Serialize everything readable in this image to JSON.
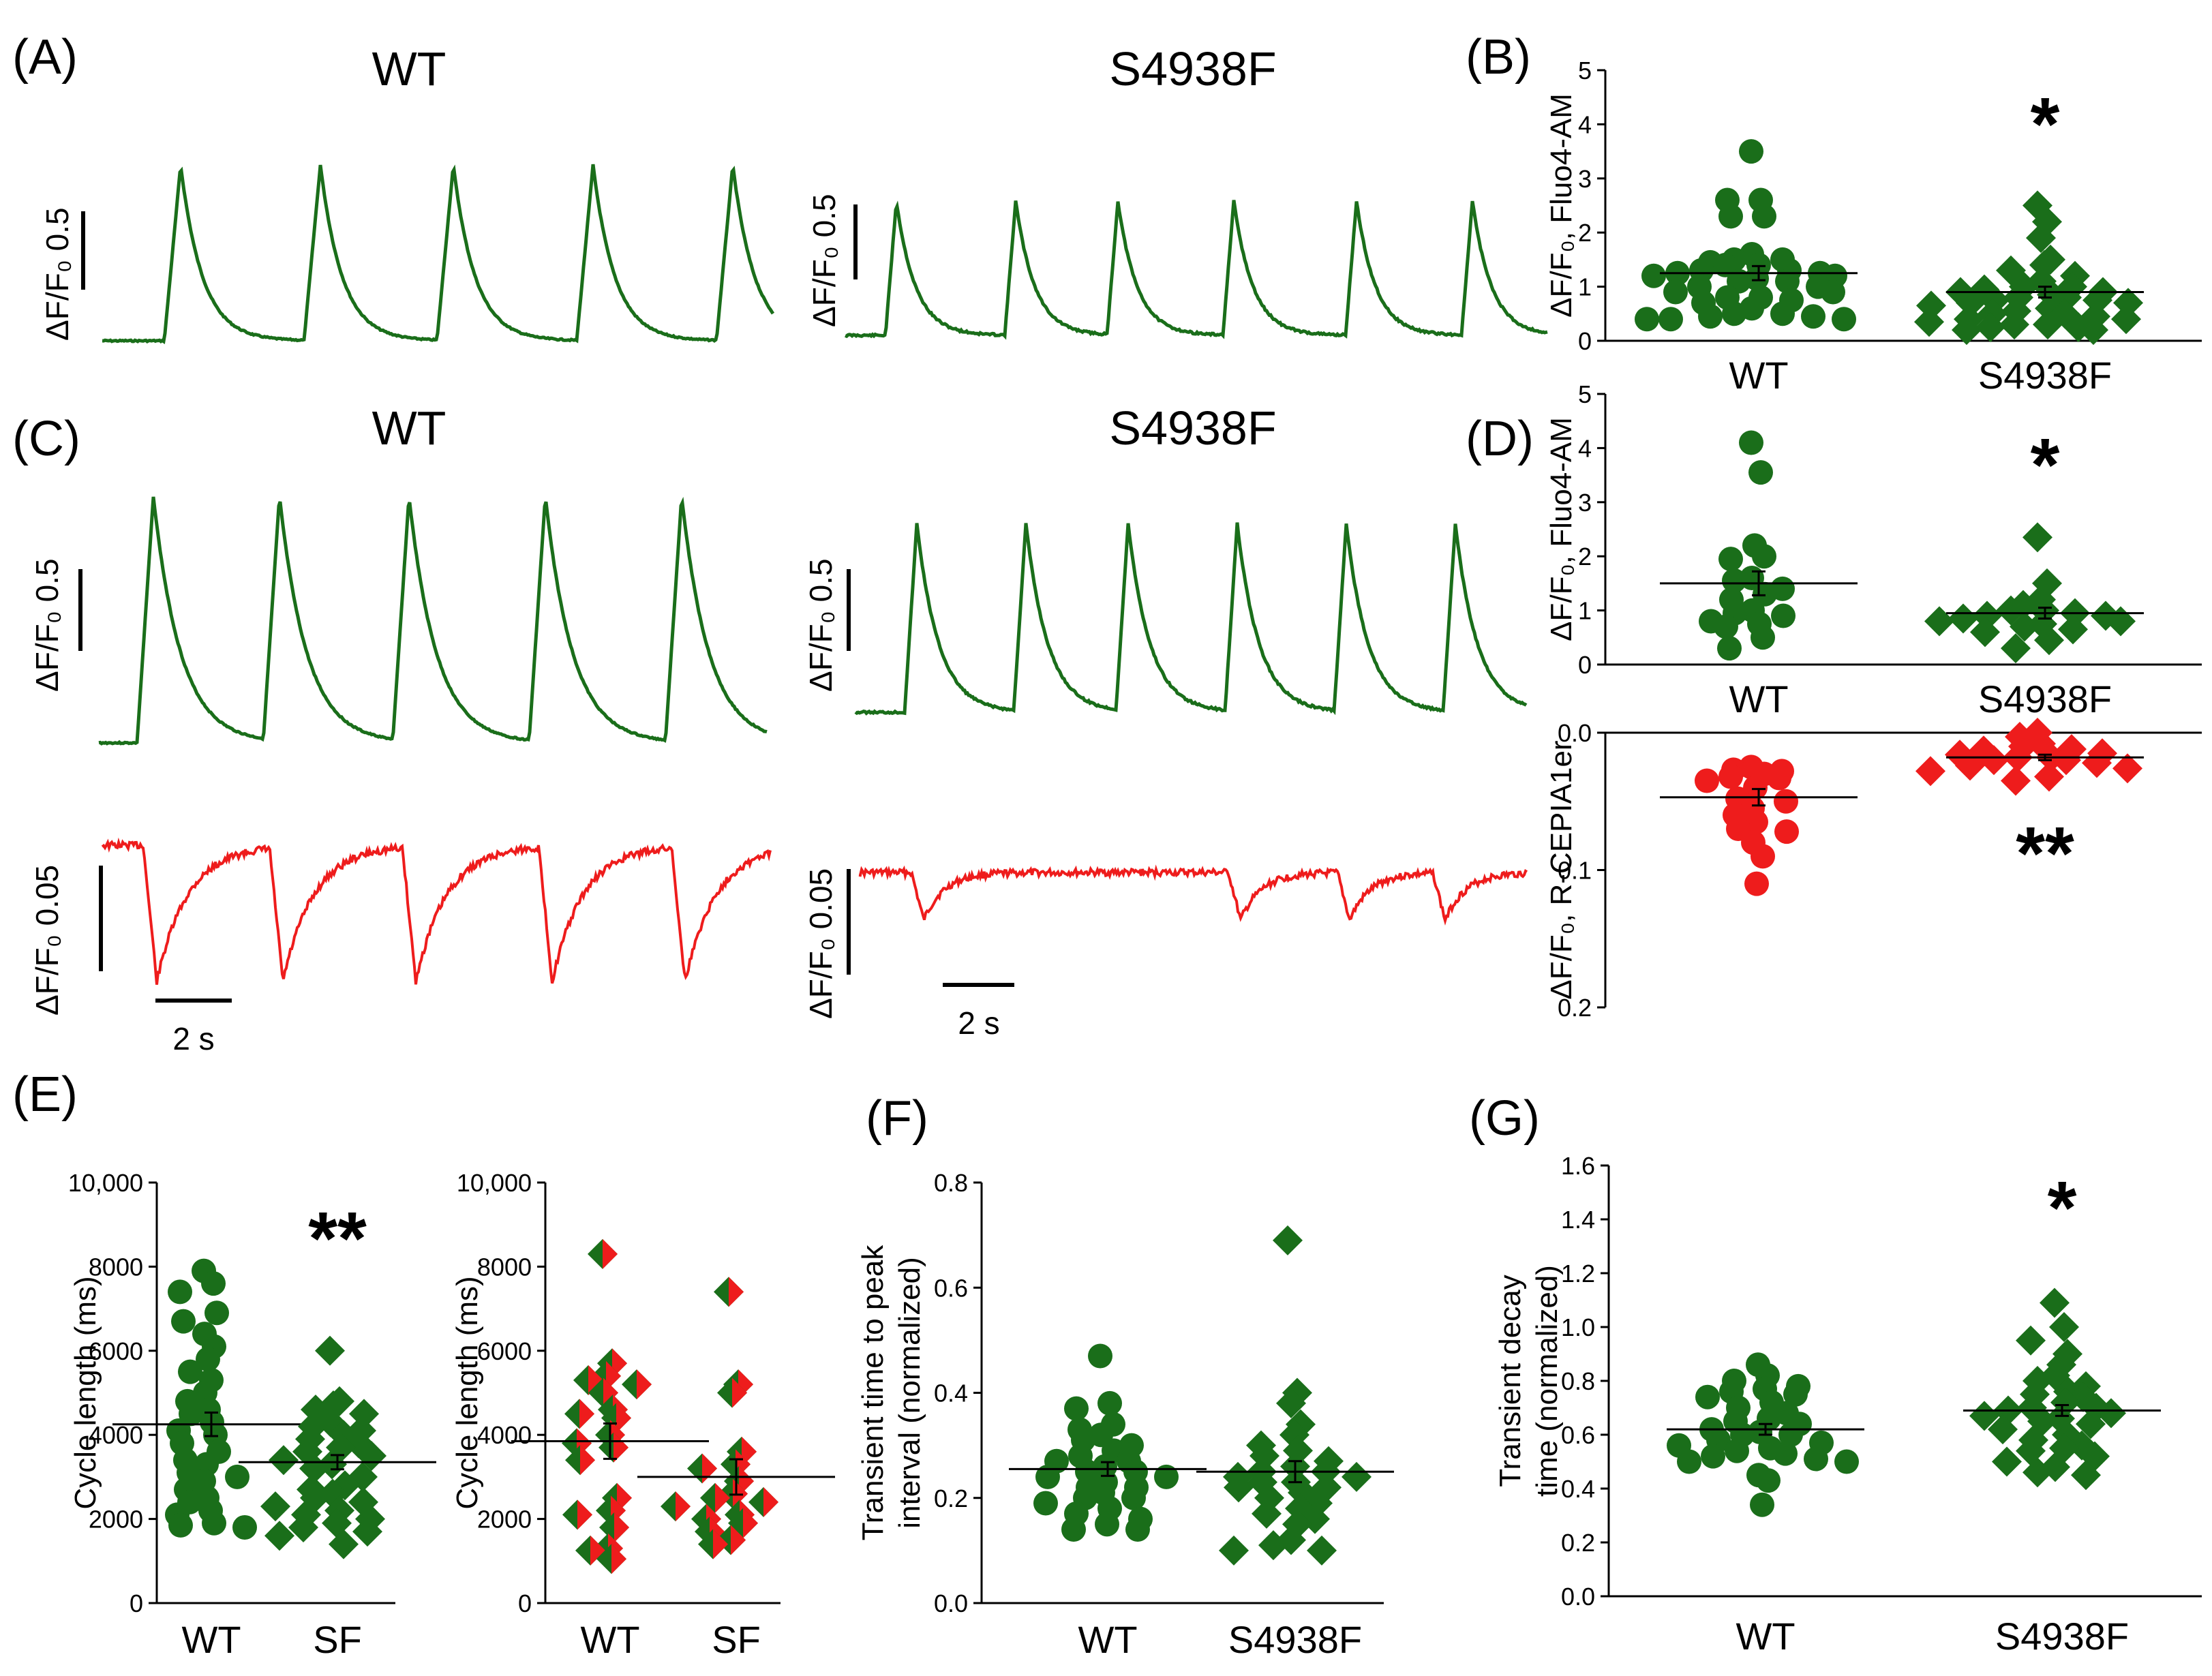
{
  "colors": {
    "green": "#1a6e1a",
    "red": "#ee1c1c",
    "black": "#000000"
  },
  "panels": {
    "A": {
      "label": "(A)",
      "title_wt": "WT",
      "title_mut": "S4938F",
      "scale_label": "ΔF/F₀ 0.5"
    },
    "B": {
      "label": "(B)"
    },
    "C": {
      "label": "(C)",
      "title_wt": "WT",
      "title_mut": "S4938F",
      "scale_label_green": "ΔF/F₀ 0.5",
      "scale_label_red": "ΔF/F₀ 0.05",
      "time_scale": "2 s"
    },
    "D": {
      "label": "(D)"
    },
    "E": {
      "label": "(E)"
    },
    "F": {
      "label": "(F)"
    },
    "G": {
      "label": "(G)"
    }
  },
  "chart_data": [
    {
      "id": "B",
      "type": "scatter",
      "title": "",
      "ylabel": "ΔF/F₀, Fluo4-AM",
      "categories": [
        "WT",
        "S4938F"
      ],
      "ylim": [
        0,
        5
      ],
      "yticks": [
        0,
        1,
        2,
        3,
        4,
        5
      ],
      "series": [
        {
          "name": "WT",
          "marker": "circle",
          "color": "#1a6e1a",
          "mean": 1.25,
          "sem": 0.13,
          "values": [
            3.5,
            2.6,
            2.6,
            2.3,
            2.3,
            1.6,
            1.5,
            1.5,
            1.45,
            1.4,
            1.4,
            1.3,
            1.3,
            1.25,
            1.25,
            1.2,
            1.2,
            1.15,
            1.1,
            1.1,
            1.0,
            1.0,
            0.9,
            0.9,
            0.8,
            0.8,
            0.75,
            0.7,
            0.6,
            0.5,
            0.5,
            0.45,
            0.45,
            0.4,
            0.4,
            0.4
          ]
        },
        {
          "name": "S4938F",
          "marker": "diamond",
          "color": "#1a6e1a",
          "mean": 0.9,
          "sem": 0.1,
          "values": [
            2.5,
            2.2,
            1.9,
            1.5,
            1.4,
            1.3,
            1.2,
            1.1,
            1.0,
            1.0,
            0.95,
            0.9,
            0.9,
            0.85,
            0.8,
            0.8,
            0.75,
            0.75,
            0.7,
            0.7,
            0.65,
            0.6,
            0.55,
            0.5,
            0.5,
            0.45,
            0.4,
            0.4,
            0.35,
            0.3,
            0.3,
            0.25,
            0.25,
            0.2,
            0.2
          ]
        }
      ],
      "significance": "*"
    },
    {
      "id": "D_top",
      "type": "scatter",
      "ylabel": "ΔF/F₀, Fluo4-AM",
      "categories": [
        "WT",
        "S4938F"
      ],
      "ylim": [
        0,
        5
      ],
      "yticks": [
        0,
        1,
        2,
        3,
        4,
        5
      ],
      "series": [
        {
          "name": "WT",
          "marker": "circle",
          "color": "#1a6e1a",
          "mean": 1.5,
          "sem": 0.22,
          "values": [
            4.1,
            3.55,
            2.2,
            2.0,
            1.95,
            1.6,
            1.55,
            1.4,
            1.3,
            1.2,
            1.0,
            0.95,
            0.9,
            0.8,
            0.75,
            0.7,
            0.5,
            0.3
          ]
        },
        {
          "name": "S4938F",
          "marker": "diamond",
          "color": "#1a6e1a",
          "mean": 0.95,
          "sem": 0.1,
          "values": [
            2.35,
            1.5,
            1.2,
            1.1,
            1.0,
            1.0,
            0.95,
            0.9,
            0.9,
            0.85,
            0.8,
            0.8,
            0.75,
            0.7,
            0.65,
            0.6,
            0.45,
            0.3
          ]
        }
      ],
      "significance": "*"
    },
    {
      "id": "D_bottom",
      "type": "scatter",
      "ylabel": "ΔF/F₀, R-CEPIA1er",
      "categories": [
        "WT",
        "S4938F"
      ],
      "ylim": [
        0,
        0.2
      ],
      "inverted": true,
      "yticks": [
        "0.0",
        "0.1",
        "0.2"
      ],
      "series": [
        {
          "name": "WT",
          "marker": "circle",
          "color": "#ee1c1c",
          "mean": 0.047,
          "sem": 0.006,
          "values": [
            0.025,
            0.027,
            0.028,
            0.03,
            0.032,
            0.033,
            0.035,
            0.04,
            0.048,
            0.05,
            0.055,
            0.06,
            0.065,
            0.07,
            0.072,
            0.08,
            0.09,
            0.11
          ]
        },
        {
          "name": "S4938F",
          "marker": "diamond",
          "color": "#ee1c1c",
          "mean": 0.018,
          "sem": 0.002,
          "values": [
            0.0,
            0.003,
            0.008,
            0.01,
            0.012,
            0.013,
            0.015,
            0.016,
            0.018,
            0.018,
            0.02,
            0.02,
            0.022,
            0.024,
            0.026,
            0.028,
            0.032,
            0.035
          ]
        }
      ],
      "significance": "**"
    },
    {
      "id": "E_left",
      "type": "scatter",
      "ylabel": "Cycle length (ms)",
      "categories": [
        "WT",
        "SF"
      ],
      "ylim": [
        0,
        10000
      ],
      "yticks": [
        "0",
        "2000",
        "4000",
        "6000",
        "8000",
        "10,000"
      ],
      "series": [
        {
          "name": "WT",
          "marker": "circle",
          "color": "#1a6e1a",
          "mean": 4250,
          "sem": 280,
          "values": [
            7900,
            7600,
            7400,
            6900,
            6700,
            6400,
            6100,
            5800,
            5500,
            5300,
            5000,
            4800,
            4600,
            4500,
            4300,
            4100,
            4000,
            3800,
            3600,
            3400,
            3300,
            3100,
            3000,
            2900,
            2700,
            2500,
            2400,
            2200,
            2100,
            1900,
            1850,
            1800
          ]
        },
        {
          "name": "SF",
          "marker": "diamond",
          "color": "#1a6e1a",
          "mean": 3350,
          "sem": 170,
          "values": [
            6000,
            4800,
            4700,
            4600,
            4500,
            4300,
            4200,
            4100,
            4000,
            3900,
            3800,
            3700,
            3600,
            3500,
            3400,
            3300,
            3200,
            3000,
            2800,
            2700,
            2600,
            2500,
            2400,
            2300,
            2200,
            2100,
            2000,
            1900,
            1800,
            1700,
            1600,
            1400
          ]
        }
      ],
      "significance": "**"
    },
    {
      "id": "E_right",
      "type": "scatter",
      "ylabel": "Cycle length (ms)",
      "categories": [
        "WT",
        "SF"
      ],
      "ylim": [
        0,
        10000
      ],
      "yticks": [
        "0",
        "2000",
        "4000",
        "6000",
        "8000",
        "10,000"
      ],
      "series": [
        {
          "name": "WT",
          "marker": "diamond-split",
          "color": "#1a6e1a",
          "mean": 3850,
          "sem": 420,
          "values": [
            8300,
            5700,
            5400,
            5300,
            5200,
            5000,
            4600,
            4500,
            4400,
            4000,
            3800,
            3700,
            3400,
            2500,
            2200,
            2100,
            1800,
            1300,
            1250,
            1050
          ]
        },
        {
          "name": "SF",
          "marker": "diamond-split",
          "color": "#1a6e1a",
          "mean": 3000,
          "sem": 420,
          "values": [
            7400,
            5200,
            5000,
            3600,
            3300,
            3200,
            2900,
            2600,
            2500,
            2400,
            2300,
            2100,
            2000,
            1900,
            1700,
            1500,
            1400
          ]
        }
      ]
    },
    {
      "id": "F",
      "type": "scatter",
      "ylabel": "Transient time to peak interval (normalized)",
      "categories": [
        "WT",
        "S4938F"
      ],
      "ylim": [
        0,
        0.8
      ],
      "yticks": [
        "0.0",
        "0.2",
        "0.4",
        "0.6",
        "0.8"
      ],
      "series": [
        {
          "name": "WT",
          "marker": "circle",
          "color": "#1a6e1a",
          "mean": 0.255,
          "sem": 0.013,
          "values": [
            0.47,
            0.38,
            0.37,
            0.34,
            0.33,
            0.32,
            0.31,
            0.3,
            0.29,
            0.28,
            0.27,
            0.27,
            0.26,
            0.25,
            0.25,
            0.24,
            0.24,
            0.23,
            0.22,
            0.22,
            0.21,
            0.2,
            0.2,
            0.19,
            0.18,
            0.17,
            0.16,
            0.15,
            0.14,
            0.14
          ]
        },
        {
          "name": "S4938F",
          "marker": "diamond",
          "color": "#1a6e1a",
          "mean": 0.25,
          "sem": 0.02,
          "values": [
            0.69,
            0.4,
            0.38,
            0.34,
            0.32,
            0.3,
            0.29,
            0.28,
            0.27,
            0.26,
            0.25,
            0.25,
            0.24,
            0.24,
            0.23,
            0.23,
            0.22,
            0.22,
            0.21,
            0.2,
            0.19,
            0.18,
            0.17,
            0.16,
            0.15,
            0.12,
            0.11,
            0.1,
            0.1
          ]
        }
      ]
    },
    {
      "id": "G",
      "type": "scatter",
      "ylabel": "Transient decay time (normalized)",
      "categories": [
        "WT",
        "S4938F"
      ],
      "ylim": [
        0,
        1.6
      ],
      "yticks": [
        "0.0",
        "0.2",
        "0.4",
        "0.6",
        "0.8",
        "1.0",
        "1.2",
        "1.4",
        "1.6"
      ],
      "series": [
        {
          "name": "WT",
          "marker": "circle",
          "color": "#1a6e1a",
          "mean": 0.62,
          "sem": 0.02,
          "values": [
            0.86,
            0.82,
            0.8,
            0.78,
            0.77,
            0.76,
            0.75,
            0.74,
            0.72,
            0.7,
            0.68,
            0.66,
            0.65,
            0.64,
            0.62,
            0.61,
            0.6,
            0.6,
            0.58,
            0.57,
            0.56,
            0.55,
            0.54,
            0.53,
            0.52,
            0.51,
            0.5,
            0.5,
            0.45,
            0.43,
            0.34
          ]
        },
        {
          "name": "S4938F",
          "marker": "diamond",
          "color": "#1a6e1a",
          "mean": 0.69,
          "sem": 0.02,
          "values": [
            1.09,
            1.0,
            0.95,
            0.9,
            0.86,
            0.82,
            0.8,
            0.78,
            0.76,
            0.75,
            0.74,
            0.72,
            0.7,
            0.7,
            0.69,
            0.68,
            0.67,
            0.66,
            0.65,
            0.64,
            0.62,
            0.6,
            0.58,
            0.56,
            0.55,
            0.54,
            0.52,
            0.5,
            0.48,
            0.46,
            0.45
          ]
        }
      ],
      "significance": "*"
    }
  ]
}
